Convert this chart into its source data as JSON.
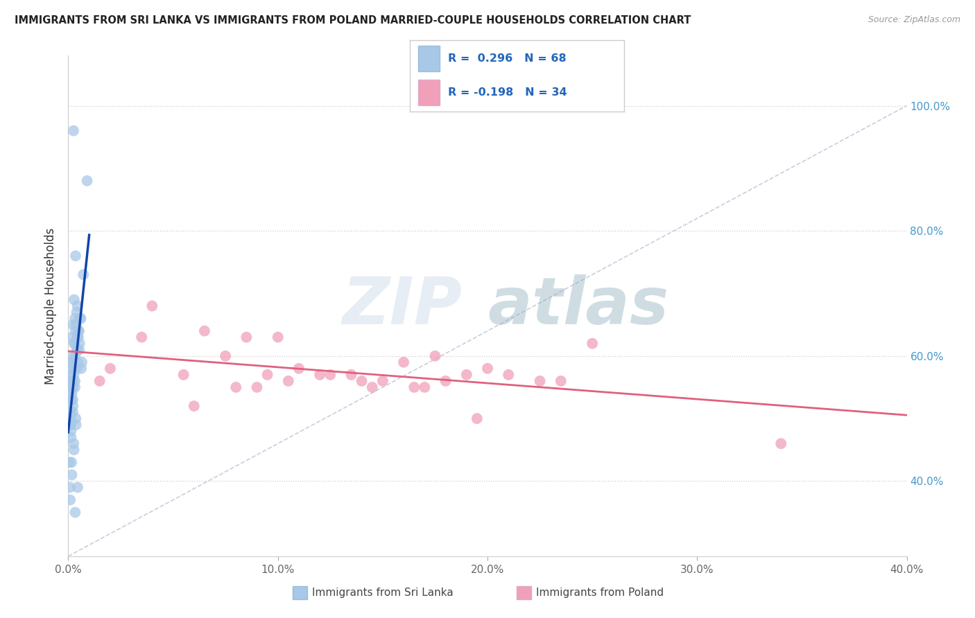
{
  "title": "IMMIGRANTS FROM SRI LANKA VS IMMIGRANTS FROM POLAND MARRIED-COUPLE HOUSEHOLDS CORRELATION CHART",
  "source": "Source: ZipAtlas.com",
  "ylabel": "Married-couple Households",
  "y_ticks": [
    40.0,
    60.0,
    80.0,
    100.0
  ],
  "x_ticks": [
    0.0,
    10.0,
    20.0,
    30.0,
    40.0
  ],
  "xlim": [
    0,
    40
  ],
  "ylim": [
    28,
    108
  ],
  "legend1_r": "0.296",
  "legend1_n": "68",
  "legend2_r": "-0.198",
  "legend2_n": "34",
  "color_sri_lanka": "#a8c8e8",
  "color_poland": "#f0a0b8",
  "color_sri_lanka_line": "#1144aa",
  "color_poland_line": "#e06080",
  "color_diag": "#aaaacc",
  "watermark_zip": "ZIP",
  "watermark_atlas": "atlas",
  "sri_lanka_x": [
    0.15,
    0.25,
    0.35,
    0.08,
    0.12,
    0.18,
    0.22,
    0.28,
    0.32,
    0.42,
    0.5,
    0.65,
    0.72,
    0.06,
    0.14,
    0.2,
    0.3,
    0.4,
    0.48,
    0.1,
    0.08,
    0.16,
    0.24,
    0.34,
    0.44,
    0.18,
    0.28,
    0.38,
    0.52,
    0.62,
    0.07,
    0.15,
    0.23,
    0.33,
    0.43,
    0.55,
    0.11,
    0.21,
    0.9,
    0.31,
    0.41,
    0.51,
    0.09,
    0.17,
    0.27,
    0.05,
    0.13,
    0.22,
    0.32,
    0.42,
    0.6,
    0.08,
    0.16,
    0.26,
    0.36,
    0.12,
    0.22,
    0.32,
    0.44,
    0.54,
    0.09,
    0.17,
    0.27,
    0.37,
    0.13,
    0.23,
    0.33,
    0.45
  ],
  "sri_lanka_y": [
    56,
    96,
    76,
    53,
    59,
    63,
    65,
    69,
    66,
    61,
    64,
    59,
    73,
    51,
    55,
    58,
    62,
    67,
    63,
    56,
    54,
    57,
    60,
    64,
    68,
    59,
    62,
    65,
    61,
    58,
    49,
    53,
    56,
    60,
    63,
    66,
    51,
    55,
    88,
    58,
    61,
    64,
    50,
    54,
    57,
    43,
    47,
    51,
    55,
    58,
    66,
    39,
    43,
    46,
    50,
    49,
    53,
    56,
    59,
    62,
    37,
    41,
    45,
    49,
    48,
    52,
    35,
    39
  ],
  "poland_x": [
    1.5,
    4.0,
    6.5,
    8.5,
    10.5,
    12.0,
    13.5,
    15.0,
    17.5,
    19.0,
    21.0,
    23.5,
    25.0,
    14.0,
    16.5,
    18.0,
    20.0,
    22.5,
    2.0,
    3.5,
    5.5,
    7.5,
    9.5,
    11.0,
    14.5,
    17.0,
    16.0,
    9.0,
    6.0,
    10.0,
    12.5,
    8.0,
    19.5,
    34.0
  ],
  "poland_y": [
    56,
    68,
    64,
    63,
    56,
    57,
    57,
    56,
    60,
    57,
    57,
    56,
    62,
    56,
    55,
    56,
    58,
    56,
    58,
    63,
    57,
    60,
    57,
    58,
    55,
    55,
    59,
    55,
    52,
    63,
    57,
    55,
    50,
    46
  ]
}
